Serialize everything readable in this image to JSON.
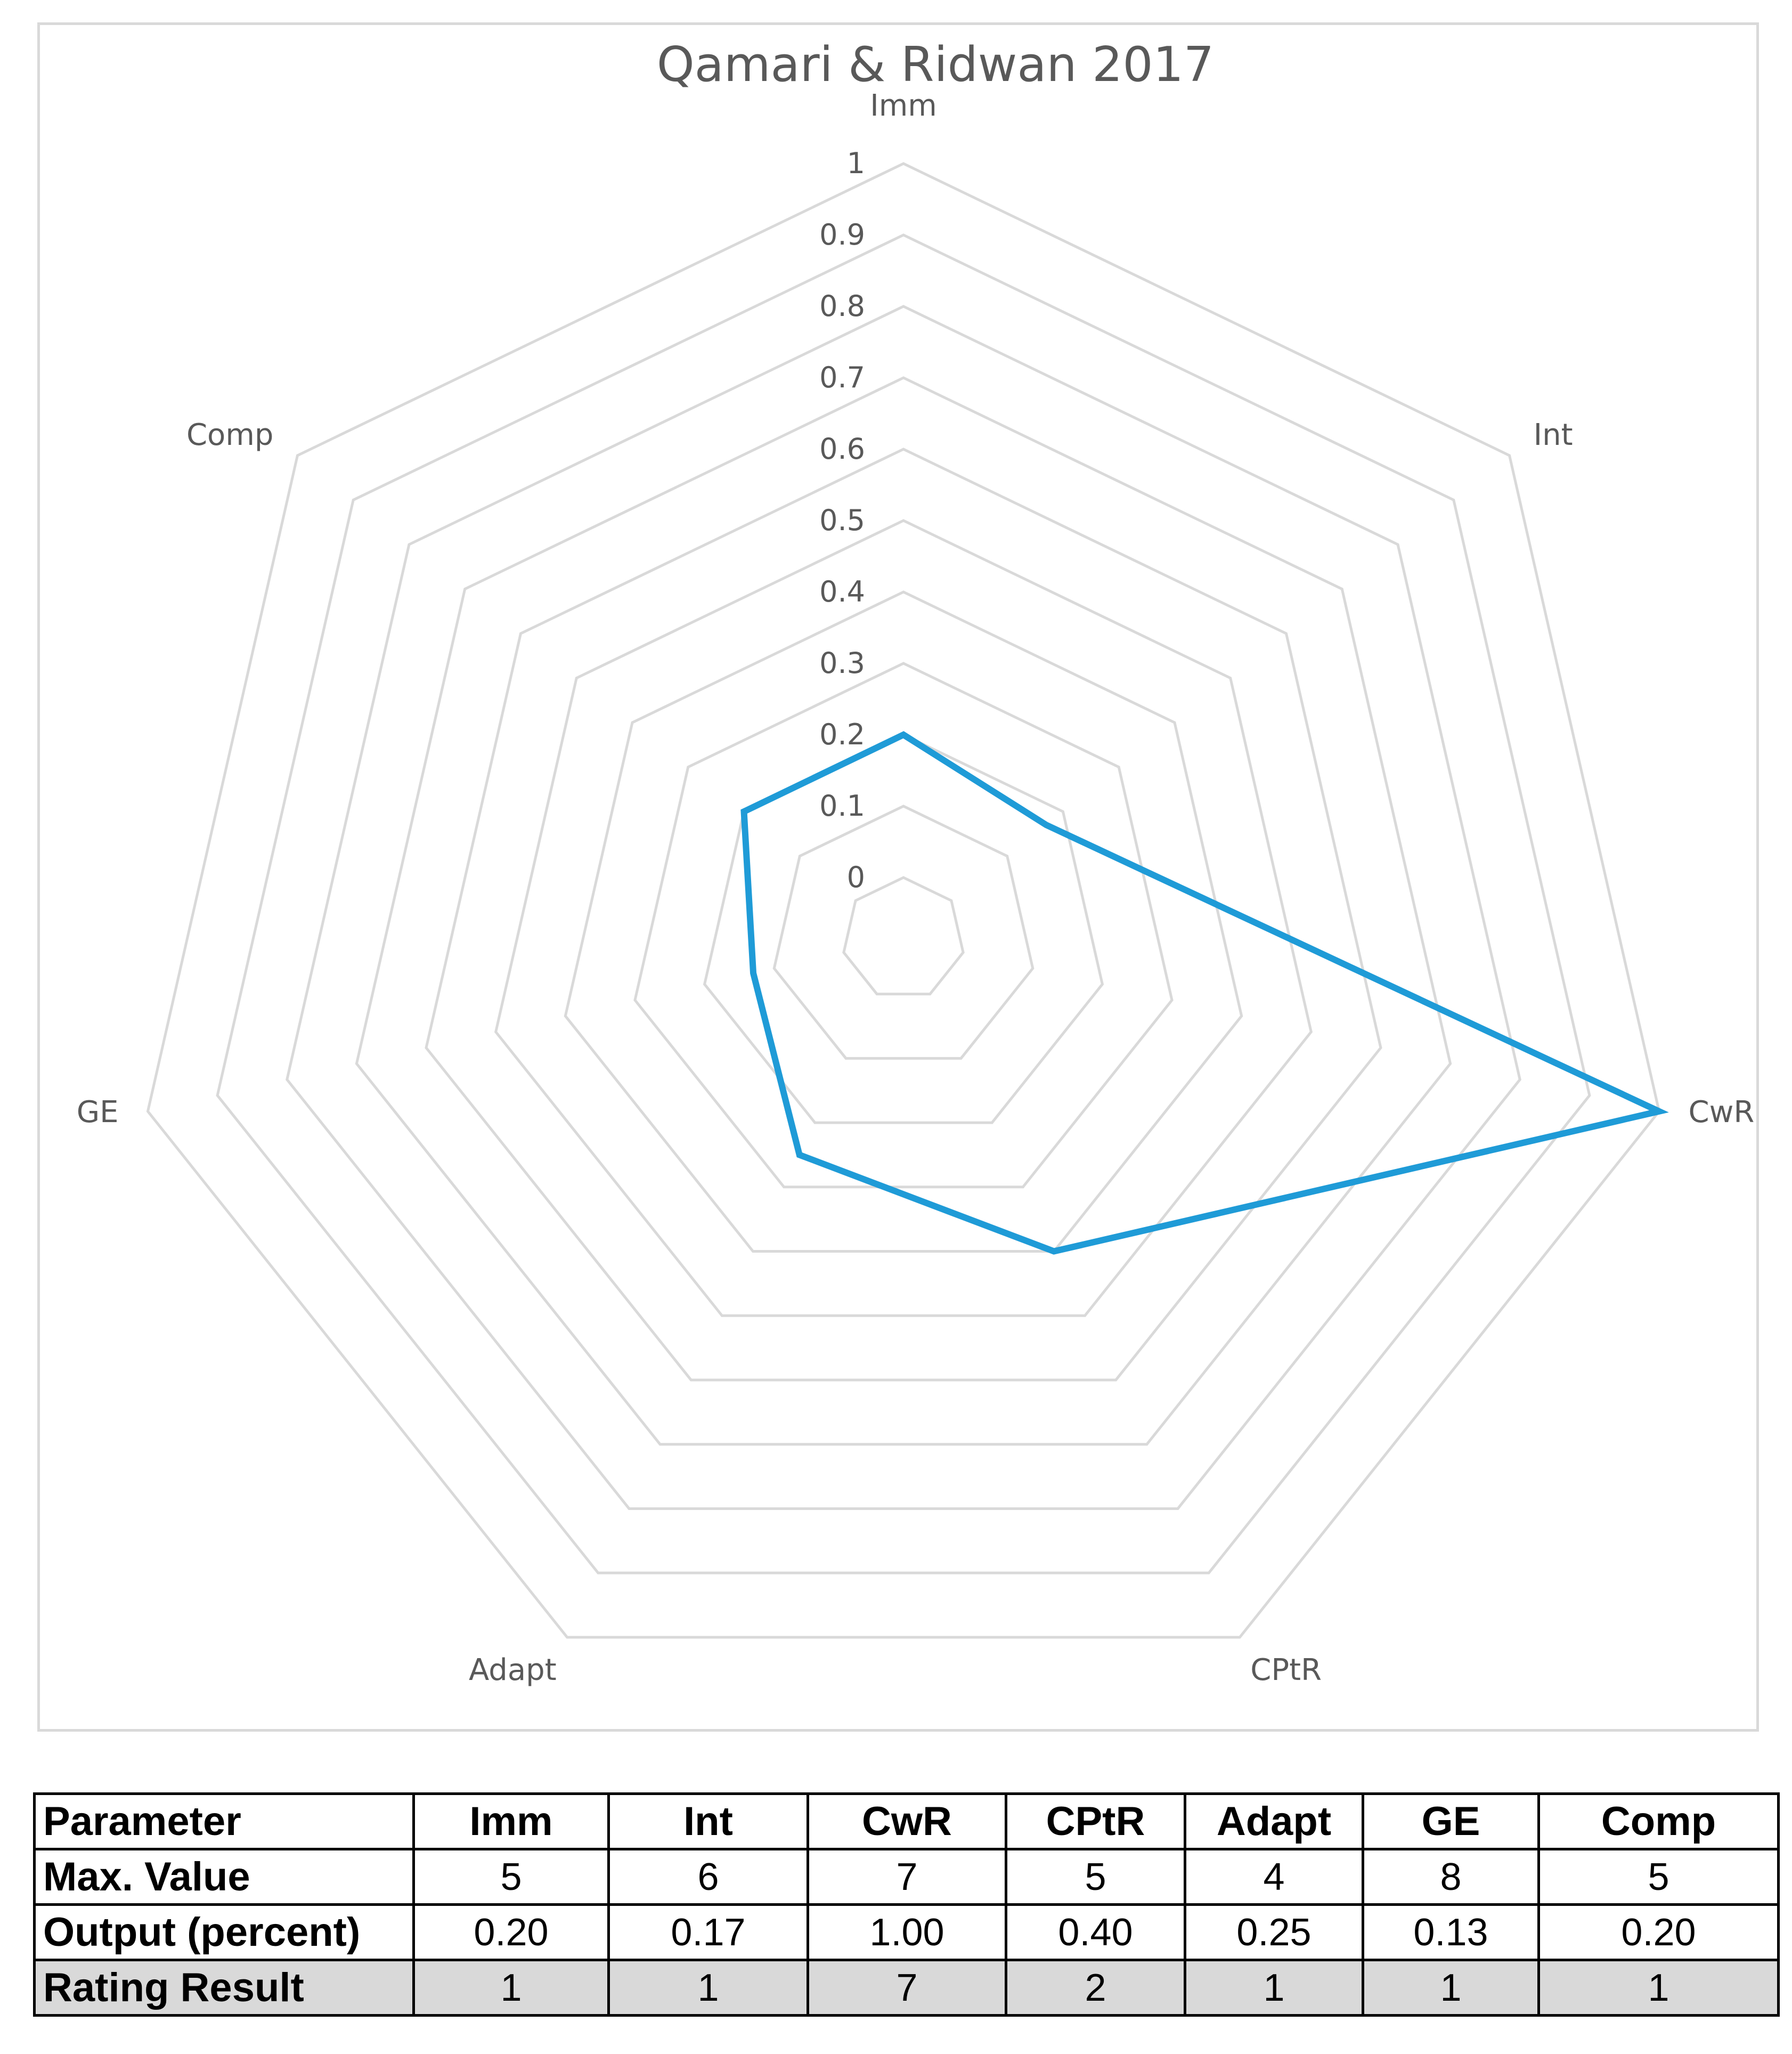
{
  "chart_data": {
    "type": "radar",
    "title": "Qamari & Ridwan 2017",
    "axes": [
      "Imm",
      "Int",
      "CwR",
      "CPtR",
      "Adapt",
      "GE",
      "Comp"
    ],
    "ticks": [
      "0",
      "0.1",
      "0.2",
      "0.3",
      "0.4",
      "0.5",
      "0.6",
      "0.7",
      "0.8",
      "0.9",
      "1"
    ],
    "rlim": [
      0,
      1
    ],
    "series": [
      {
        "values": [
          0.2,
          0.17,
          1.0,
          0.4,
          0.25,
          0.13,
          0.2
        ]
      }
    ],
    "series_color": "#1f9bd7",
    "grid_color": "#d9d9d9",
    "grid": true,
    "legend": "none"
  },
  "table": {
    "header": [
      "Parameter",
      "Imm",
      "Int",
      "CwR",
      "CPtR",
      "Adapt",
      "GE",
      "Comp"
    ],
    "rows": [
      {
        "label": "Max. Value",
        "cells": [
          "5",
          "6",
          "7",
          "5",
          "4",
          "8",
          "5"
        ]
      },
      {
        "label": "Output (percent)",
        "cells": [
          "0.20",
          "0.17",
          "1.00",
          "0.40",
          "0.25",
          "0.13",
          "0.20"
        ]
      },
      {
        "label": "Rating Result",
        "cells": [
          "1",
          "1",
          "7",
          "2",
          "1",
          "1",
          "1"
        ]
      }
    ]
  }
}
